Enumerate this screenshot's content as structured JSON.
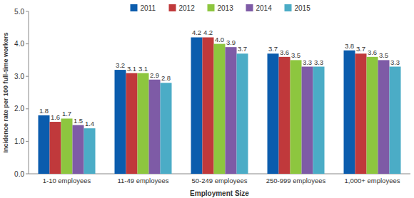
{
  "chart_data": {
    "type": "bar",
    "x_label": "Employment Size",
    "y_label": "Incidence rate per 100 full-time workers",
    "categories": [
      "1-10 employees",
      "11-49 employees",
      "50-249 employees",
      "250-999 employees",
      "1,000+ employees"
    ],
    "series": [
      {
        "name": "2011",
        "color": "#0b5cad",
        "values": [
          1.8,
          3.2,
          4.2,
          3.7,
          3.8
        ],
        "value_labels": [
          "1.8",
          "3.2",
          "4.2",
          "3.7",
          "3.8"
        ]
      },
      {
        "name": "2012",
        "color": "#c0393b",
        "values": [
          1.6,
          3.1,
          4.2,
          3.6,
          3.7
        ],
        "value_labels": [
          "1.6",
          "3.1",
          "4.2",
          "3.6",
          "3.7"
        ]
      },
      {
        "name": "2013",
        "color": "#8dc63f",
        "values": [
          1.7,
          3.1,
          4.0,
          3.5,
          3.6
        ],
        "value_labels": [
          "1.7",
          "3.1",
          "4.0",
          "3.5",
          "3.6"
        ]
      },
      {
        "name": "2014",
        "color": "#7e5ba6",
        "values": [
          1.5,
          2.9,
          3.9,
          3.3,
          3.5
        ],
        "value_labels": [
          "1.5",
          "2.9",
          "3.9",
          "3.3",
          "3.5"
        ]
      },
      {
        "name": "2015",
        "color": "#4bacc6",
        "values": [
          1.4,
          2.8,
          3.7,
          3.3,
          3.3
        ],
        "value_labels": [
          "1.4",
          "2.8",
          "3.7",
          "3.3",
          "3.3"
        ]
      }
    ],
    "ylim": [
      0,
      5
    ],
    "yticks": [
      {
        "value": 0,
        "label": "0.0"
      },
      {
        "value": 1,
        "label": "1.0"
      },
      {
        "value": 2,
        "label": "2.0"
      },
      {
        "value": 3,
        "label": "3.0"
      },
      {
        "value": 4,
        "label": "4.0"
      },
      {
        "value": 5,
        "label": "5.0"
      }
    ],
    "grid": false,
    "legend": "top",
    "data_labels": true
  }
}
